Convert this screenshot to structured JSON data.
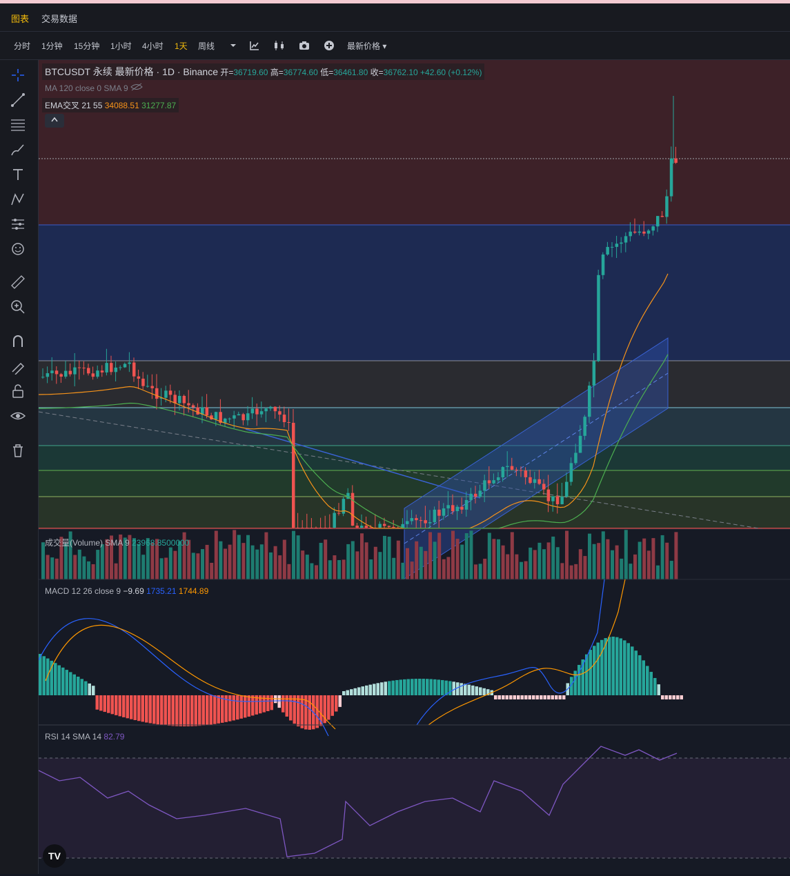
{
  "top_tabs": [
    {
      "label": "图表",
      "active": true
    },
    {
      "label": "交易数据",
      "active": false
    }
  ],
  "intervals": [
    {
      "label": "分时",
      "active": false
    },
    {
      "label": "1分钟",
      "active": false
    },
    {
      "label": "15分钟",
      "active": false
    },
    {
      "label": "1小时",
      "active": false
    },
    {
      "label": "4小时",
      "active": false
    },
    {
      "label": "1天",
      "active": true
    },
    {
      "label": "周线",
      "active": false
    }
  ],
  "price_type_select": "最新价格",
  "toolbar_icons": [
    "chevron-down-icon",
    "indicators-icon",
    "candle-type-icon",
    "camera-icon",
    "add-icon"
  ],
  "left_tools": [
    "crosshair-icon",
    "trendline-icon",
    "fib-lines-icon",
    "brush-icon",
    "text-icon",
    "pattern-icon",
    "forecast-icon",
    "emoji-icon",
    "ruler-icon",
    "zoom-in-icon",
    "magnet-icon",
    "lock-draw-icon",
    "lock-icon",
    "eye-icon",
    "trash-icon"
  ],
  "symbol": {
    "title": "BTCUSDT 永续 最新价格 · 1D · Binance",
    "open_label": "开=",
    "open": "36719.60",
    "high_label": "高=",
    "high": "36774.60",
    "low_label": "低=",
    "low": "36461.80",
    "close_label": "收=",
    "close": "36762.10",
    "change": "+42.60 (+0.12%)"
  },
  "ma_legend": "MA 120 close 0 SMA 9",
  "ema_legend": {
    "label": "EMA交叉 21 55",
    "v1": "34088.51",
    "v2": "31277.87"
  },
  "volume_legend": {
    "label": "成交量(Volume) SMA 9",
    "value": "23968.8500000"
  },
  "macd_legend": {
    "label": "MACD 12 26 close 9",
    "hist": "−9.69",
    "macd": "1735.21",
    "signal": "1744.89"
  },
  "rsi_legend": {
    "label": "RSI 14 SMA 14",
    "value": "82.79"
  },
  "colors": {
    "up": "#26a69a",
    "down": "#ef5350",
    "ema_fast": "#f7931a",
    "ema_slow": "#4caf50",
    "macd": "#2962ff",
    "signal": "#ff9800",
    "rsi": "#7e57c2",
    "accent": "#f0b90b"
  },
  "logo": "TV",
  "chart_data": {
    "type": "candlestick",
    "symbol": "BTCUSDT",
    "interval": "1D",
    "last_ohlc": {
      "open": 36719.6,
      "high": 36774.6,
      "low": 36461.8,
      "close": 36762.1
    },
    "panes": [
      "price",
      "volume",
      "macd",
      "rsi"
    ]
  }
}
